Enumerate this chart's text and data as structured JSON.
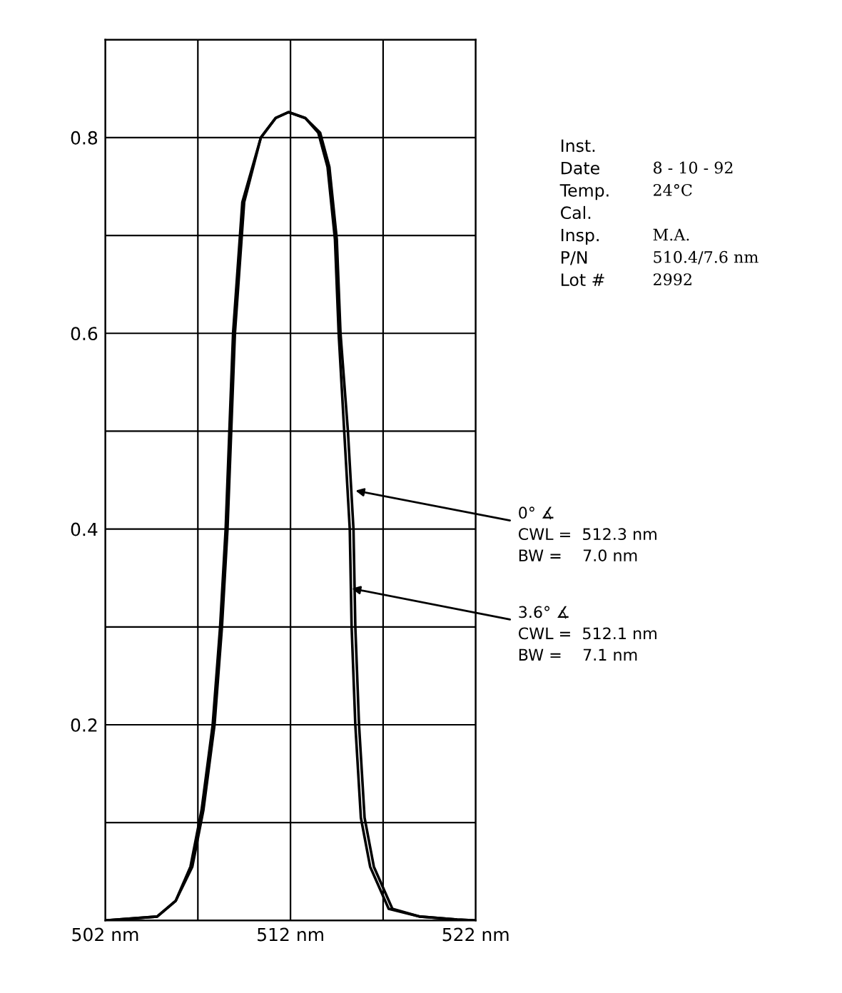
{
  "chart_data": {
    "type": "line",
    "series": [
      {
        "color": "#000000",
        "x": [
          502,
          504.8,
          505.8,
          506.6,
          507.2,
          507.8,
          508.2,
          508.5,
          508.9,
          509.4,
          510.4,
          511.2,
          511.9,
          512.8,
          513.6,
          514.1,
          514.5,
          514.7,
          515.1,
          515.4,
          515.5,
          515.7,
          516.0,
          516.5,
          517.5,
          519,
          521,
          522
        ],
        "values": [
          0,
          0.004,
          0.02,
          0.055,
          0.113,
          0.2,
          0.3,
          0.4,
          0.6,
          0.734,
          0.8,
          0.82,
          0.826,
          0.82,
          0.805,
          0.77,
          0.696,
          0.6,
          0.5,
          0.4,
          0.3,
          0.2,
          0.105,
          0.055,
          0.012,
          0.004,
          0.001,
          0
        ]
      },
      {
        "color": "#000000",
        "x": [
          502,
          504.8,
          505.8,
          506.7,
          507.3,
          507.9,
          508.3,
          508.6,
          509.0,
          509.5,
          510.4,
          511.2,
          511.9,
          512.8,
          513.5,
          514.0,
          514.4,
          514.6,
          514.9,
          515.2,
          515.3,
          515.5,
          515.8,
          516.3,
          517.3,
          519,
          521,
          522
        ],
        "values": [
          0,
          0.004,
          0.02,
          0.055,
          0.113,
          0.2,
          0.3,
          0.4,
          0.6,
          0.734,
          0.8,
          0.82,
          0.826,
          0.82,
          0.805,
          0.77,
          0.696,
          0.6,
          0.5,
          0.4,
          0.3,
          0.2,
          0.105,
          0.055,
          0.012,
          0.004,
          0.001,
          0
        ]
      }
    ],
    "xlim": [
      502,
      522
    ],
    "xticks": [
      {
        "value": 502,
        "label": "502 nm"
      },
      {
        "value": 507,
        "label": null
      },
      {
        "value": 512,
        "label": "512 nm"
      },
      {
        "value": 517,
        "label": null
      },
      {
        "value": 522,
        "label": "522 nm"
      }
    ],
    "ylim": [
      0,
      0.9
    ],
    "yticks": [
      {
        "value": 0,
        "label": null
      },
      {
        "value": 0.1,
        "label": null
      },
      0.2,
      {
        "value": 0.3,
        "label": null
      },
      0.4,
      {
        "value": 0.5,
        "label": null
      },
      0.6,
      {
        "value": 0.7,
        "label": null
      },
      0.8,
      {
        "value": 0.9,
        "label": null
      }
    ],
    "grid": true,
    "annotations": [
      {
        "text": "0° ∡\nCWL =  512.3 nm\nBW =    7.0 nm",
        "x": 515.3,
        "y": 0.44
      },
      {
        "text": "3.6° ∡\nCWL =  512.1 nm\nBW =    7.1 nm",
        "x": 515.1,
        "y": 0.34
      },
      "Inst.\t",
      "Date\t8 - 10 - 92",
      "Temp.\t24°C",
      "Cal.\t",
      "Insp.\tM.A.",
      "P/N\t510.4/7.6 nm",
      "Lot #\t2992"
    ]
  }
}
